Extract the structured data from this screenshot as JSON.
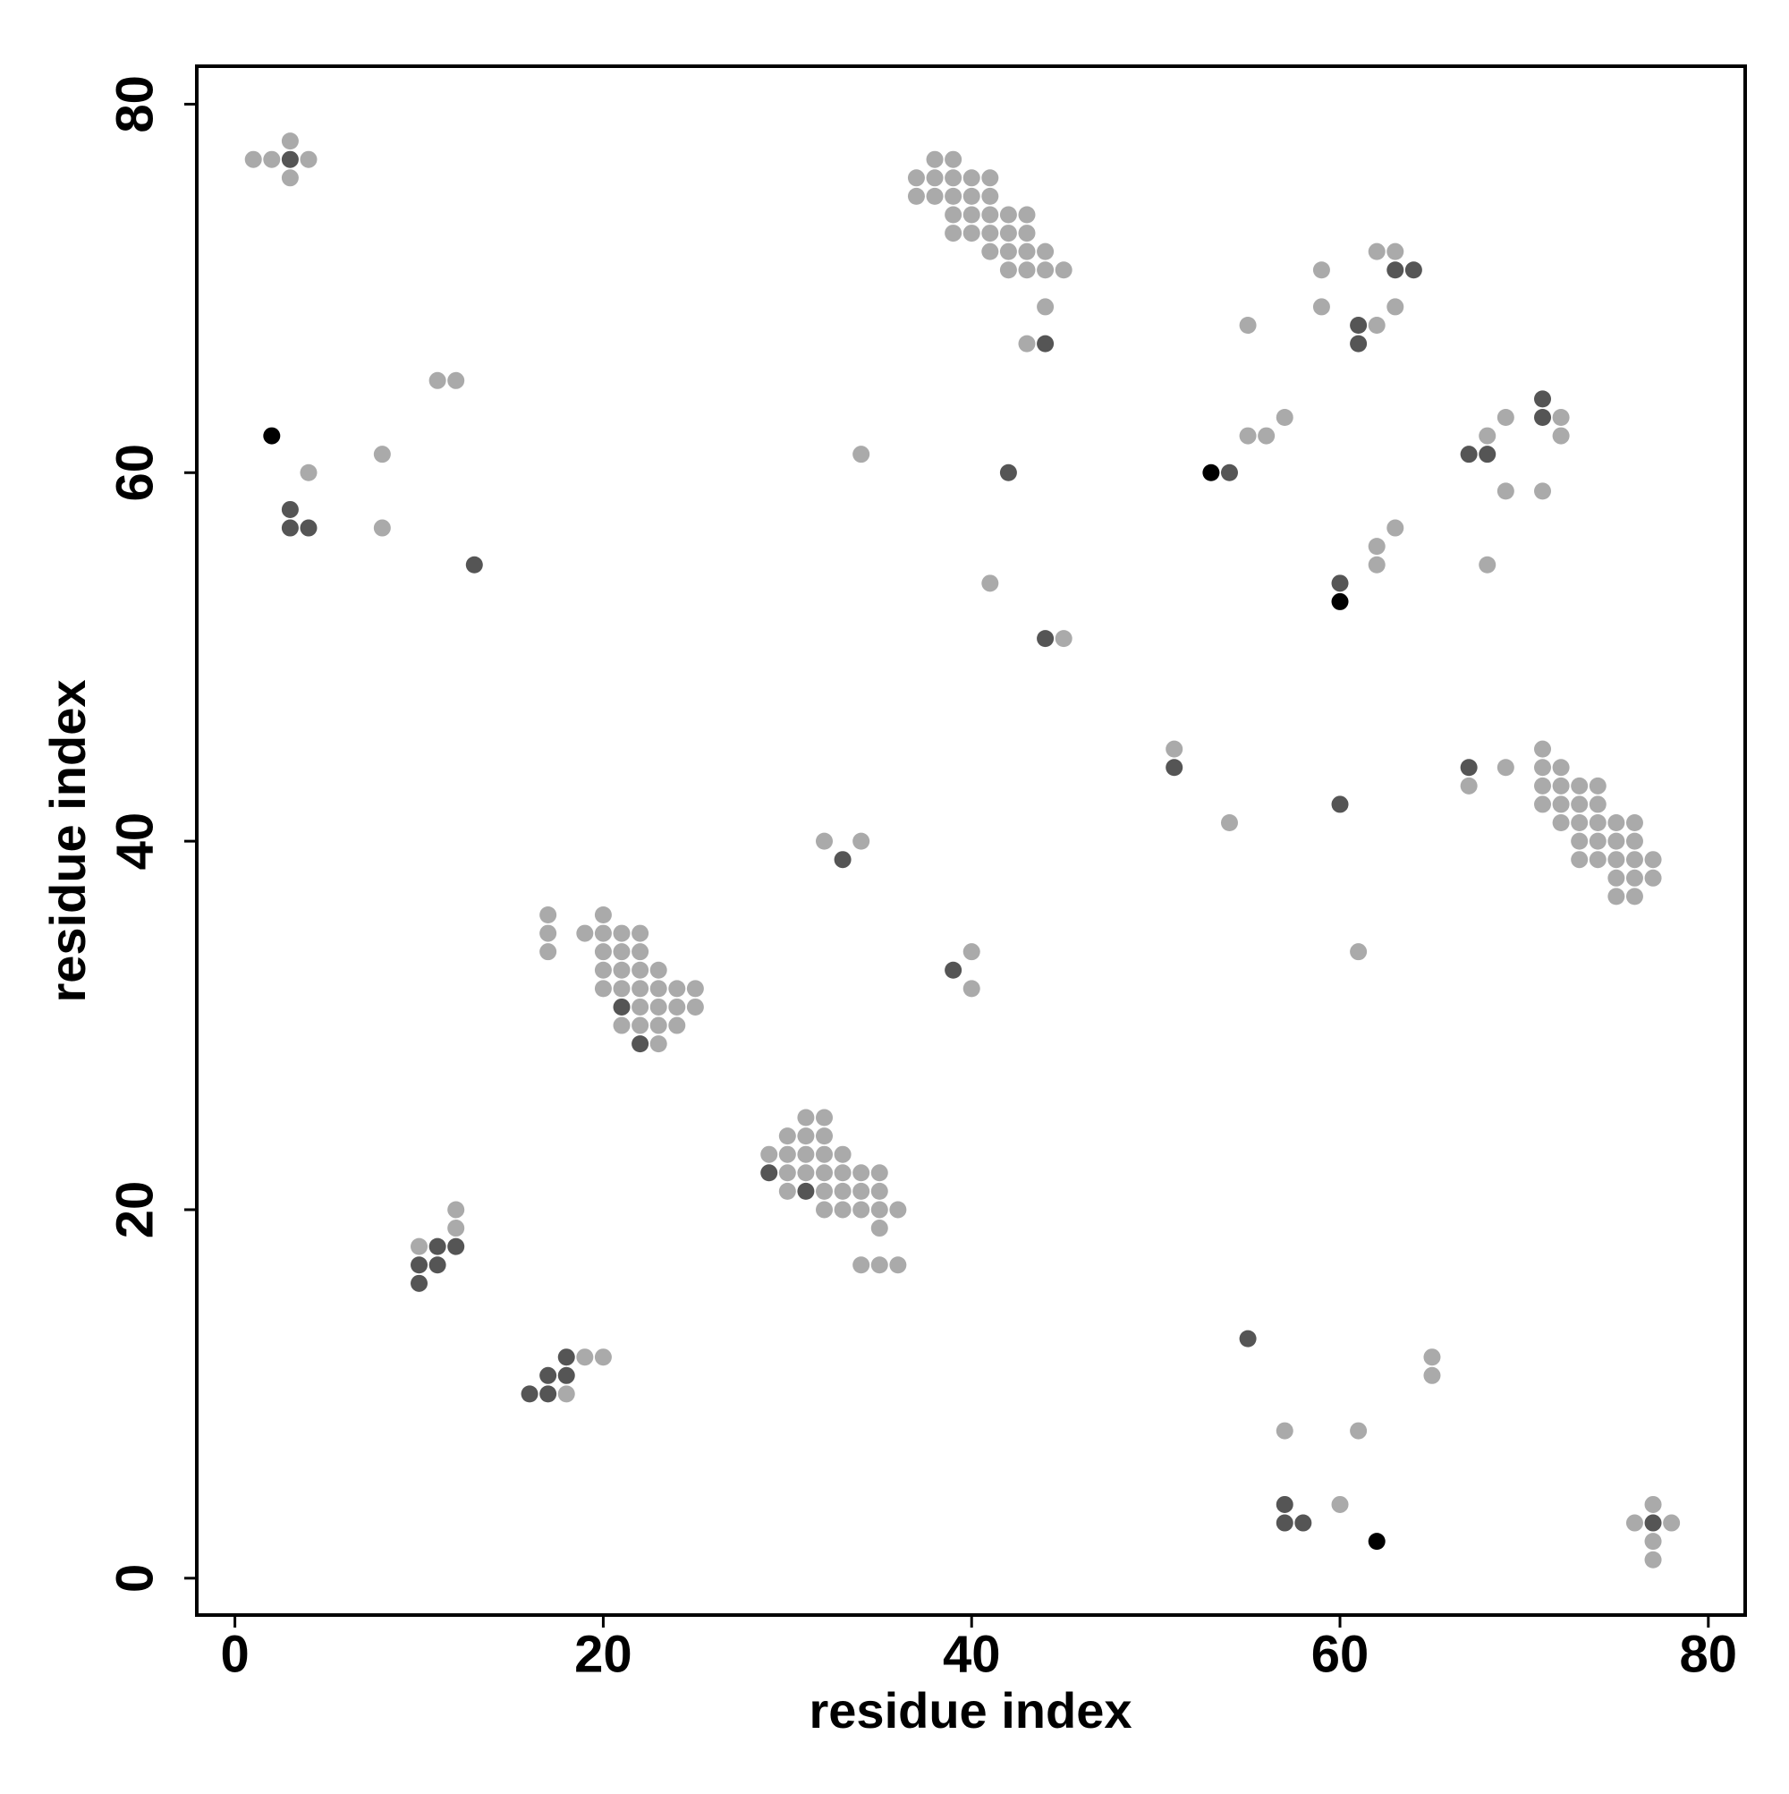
{
  "chart_data": {
    "type": "scatter",
    "xlabel": "residue index",
    "ylabel": "residue index",
    "xlim": [
      -2.07,
      82.0
    ],
    "ylim": [
      -2.0,
      82.06
    ],
    "xticks": [
      0,
      20,
      40,
      60,
      80
    ],
    "yticks": [
      0,
      20,
      40,
      60,
      80
    ],
    "series": [
      {
        "color": "#aaaaaa",
        "x": [
          1,
          2,
          3,
          4,
          3,
          4,
          8,
          8,
          11,
          12,
          10,
          12,
          12,
          18,
          19,
          20,
          17,
          17,
          17,
          20,
          19,
          20,
          21,
          22,
          20,
          21,
          22,
          20,
          21,
          22,
          23,
          20,
          21,
          22,
          23,
          24,
          25,
          22,
          23,
          24,
          25,
          21,
          22,
          23,
          24,
          23,
          32,
          34,
          34,
          31,
          32,
          30,
          31,
          32,
          29,
          30,
          31,
          32,
          33,
          30,
          31,
          32,
          33,
          34,
          35,
          30,
          32,
          33,
          34,
          35,
          32,
          33,
          34,
          35,
          36,
          35,
          34,
          35,
          36,
          40,
          40,
          41,
          45,
          38,
          39,
          37,
          38,
          39,
          40,
          41,
          37,
          38,
          39,
          40,
          41,
          39,
          40,
          41,
          42,
          43,
          39,
          40,
          41,
          42,
          43,
          41,
          42,
          43,
          44,
          42,
          43,
          44,
          45,
          44,
          43,
          51,
          54,
          55,
          55,
          56,
          57,
          57,
          60,
          61,
          65,
          65,
          61,
          62,
          62,
          63,
          59,
          59,
          62,
          62,
          63,
          63,
          68,
          69,
          69,
          68,
          72,
          72,
          71,
          67,
          69,
          71,
          71,
          72,
          71,
          72,
          73,
          74,
          71,
          72,
          73,
          74,
          72,
          73,
          74,
          75,
          76,
          73,
          74,
          75,
          76,
          73,
          74,
          75,
          76,
          77,
          75,
          76,
          77,
          75,
          76,
          76,
          77,
          78,
          77,
          77
        ],
        "values": [
          77,
          77,
          78,
          77,
          76,
          60,
          61,
          57,
          65,
          65,
          18,
          20,
          19,
          10,
          12,
          12,
          36,
          35,
          34,
          36,
          35,
          35,
          35,
          35,
          34,
          34,
          34,
          33,
          33,
          33,
          33,
          32,
          32,
          32,
          32,
          32,
          32,
          31,
          31,
          31,
          31,
          30,
          30,
          30,
          30,
          29,
          40,
          40,
          61,
          25,
          25,
          24,
          24,
          24,
          23,
          23,
          23,
          23,
          23,
          22,
          22,
          22,
          22,
          22,
          22,
          21,
          21,
          21,
          21,
          21,
          20,
          20,
          20,
          20,
          20,
          19,
          17,
          17,
          17,
          34,
          32,
          54,
          51,
          77,
          77,
          76,
          76,
          76,
          76,
          76,
          75,
          75,
          75,
          75,
          75,
          74,
          74,
          74,
          74,
          74,
          73,
          73,
          73,
          73,
          73,
          72,
          72,
          72,
          72,
          71,
          71,
          71,
          71,
          69,
          67,
          45,
          41,
          68,
          62,
          62,
          63,
          8,
          4,
          8,
          12,
          11,
          34,
          56,
          55,
          57,
          71,
          69,
          68,
          72,
          72,
          69,
          62,
          63,
          59,
          55,
          63,
          62,
          59,
          43,
          44,
          45,
          44,
          44,
          43,
          43,
          43,
          43,
          42,
          42,
          42,
          42,
          41,
          41,
          41,
          41,
          41,
          40,
          40,
          40,
          40,
          39,
          39,
          39,
          39,
          39,
          38,
          38,
          38,
          37,
          37,
          3,
          4,
          3,
          2,
          1
        ]
      },
      {
        "color": "#555555",
        "x": [
          3,
          3,
          3,
          4,
          13,
          11,
          12,
          10,
          11,
          10,
          16,
          17,
          17,
          18,
          18,
          21,
          22,
          33,
          29,
          31,
          39,
          42,
          44,
          44,
          51,
          54,
          55,
          57,
          57,
          58,
          60,
          60,
          61,
          61,
          63,
          64,
          67,
          68,
          71,
          71,
          67,
          77
        ],
        "values": [
          77,
          58,
          57,
          57,
          55,
          18,
          18,
          17,
          17,
          16,
          10,
          10,
          11,
          11,
          12,
          31,
          29,
          39,
          22,
          21,
          33,
          60,
          51,
          67,
          44,
          60,
          13,
          4,
          3,
          3,
          42,
          54,
          68,
          67,
          71,
          71,
          61,
          61,
          64,
          63,
          44,
          3
        ]
      },
      {
        "color": "#000000",
        "x": [
          2,
          53,
          60,
          62
        ],
        "values": [
          62,
          60,
          53,
          2
        ]
      }
    ]
  }
}
